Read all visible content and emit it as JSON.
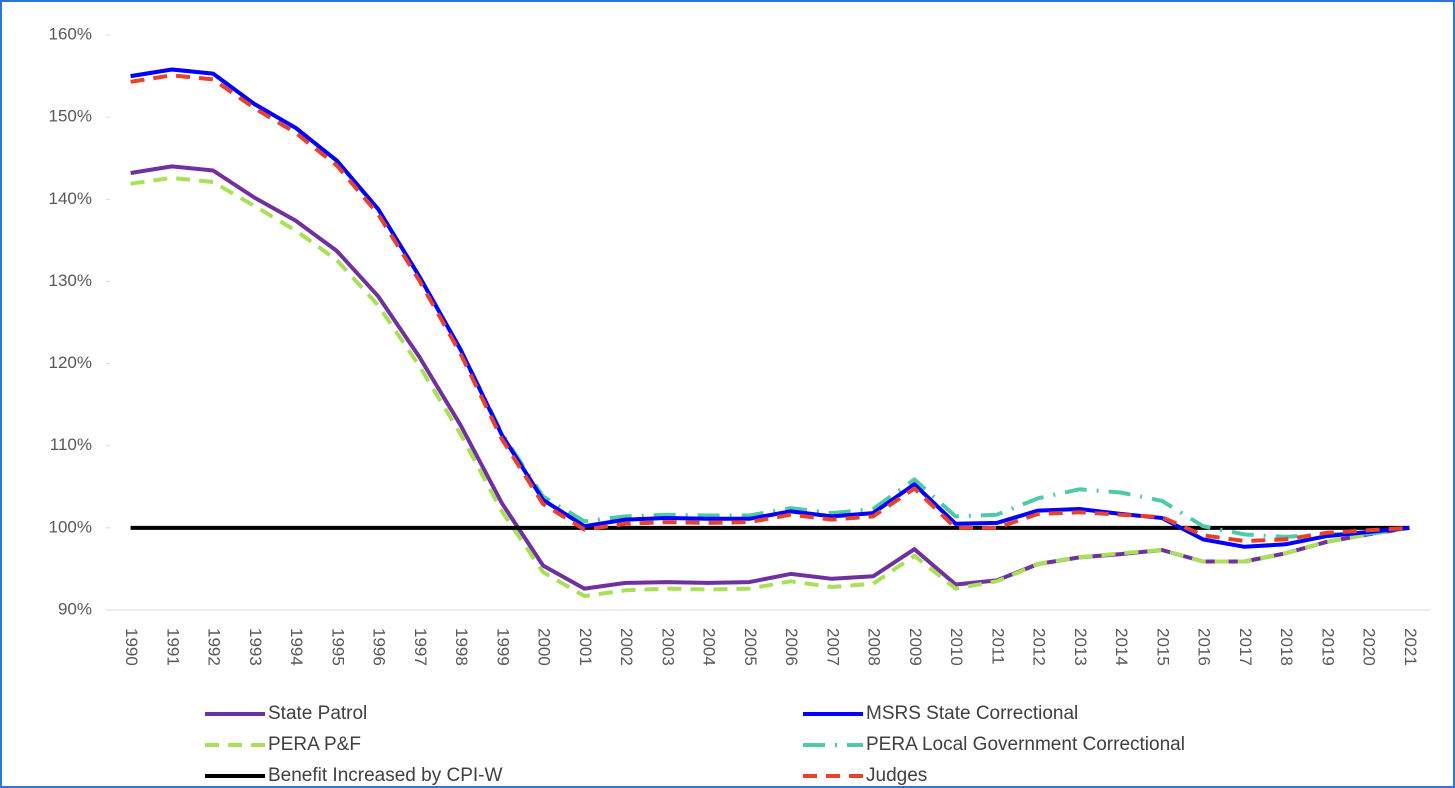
{
  "chart_data": {
    "type": "line",
    "categories": [
      "1990",
      "1991",
      "1992",
      "1993",
      "1994",
      "1995",
      "1996",
      "1997",
      "1998",
      "1999",
      "2000",
      "2001",
      "2002",
      "2003",
      "2004",
      "2005",
      "2006",
      "2007",
      "2008",
      "2009",
      "2010",
      "2011",
      "2012",
      "2013",
      "2014",
      "2015",
      "2016",
      "2017",
      "2018",
      "2019",
      "2020",
      "2021"
    ],
    "ylim": [
      90,
      160
    ],
    "yticks": [
      {
        "value": 90,
        "label": "90%"
      },
      {
        "value": 100,
        "label": "100%"
      },
      {
        "value": 110,
        "label": "110%"
      },
      {
        "value": 120,
        "label": "120%"
      },
      {
        "value": 130,
        "label": "130%"
      },
      {
        "value": 140,
        "label": "140%"
      },
      {
        "value": 150,
        "label": "150%"
      },
      {
        "value": 160,
        "label": "160%"
      }
    ],
    "grid": false,
    "series": [
      {
        "name": "State Patrol",
        "color": "#7030a0",
        "line_style": "solid",
        "values": [
          143.2,
          144,
          143.5,
          140.2,
          137.4,
          133.7,
          128.2,
          120.8,
          112.5,
          103,
          95.4,
          92.6,
          93.3,
          93.4,
          93.3,
          93.4,
          94.4,
          93.8,
          94.1,
          97.4,
          93.1,
          93.6,
          95.6,
          96.4,
          96.8,
          97.3,
          95.9,
          95.9,
          96.9,
          98.3,
          99.2,
          100
        ]
      },
      {
        "name": "MSRS State Correctional",
        "color": "#0000ff",
        "line_style": "solid",
        "values": [
          155,
          155.8,
          155.3,
          151.6,
          148.7,
          144.7,
          138.8,
          130.6,
          121.7,
          111.3,
          103.4,
          100.2,
          101,
          101.2,
          101.1,
          101.1,
          102,
          101.4,
          101.8,
          105.3,
          100.5,
          100.6,
          102.1,
          102.3,
          101.7,
          101.2,
          98.6,
          97.7,
          98,
          99,
          99.5,
          100
        ]
      },
      {
        "name": "PERA P&F",
        "color": "#a9e05a",
        "line_style": "dashed",
        "values": [
          141.9,
          142.6,
          142.1,
          139.2,
          136.2,
          132.6,
          127.1,
          119.7,
          111.4,
          102,
          94.6,
          91.7,
          92.4,
          92.6,
          92.5,
          92.6,
          93.5,
          92.8,
          93.2,
          96.6,
          92.6,
          93.5,
          95.6,
          96.4,
          96.9,
          97.3,
          95.9,
          95.9,
          96.9,
          98.3,
          99.2,
          100
        ]
      },
      {
        "name": "PERA Local Government Correctional",
        "color": "#4fc9a8",
        "line_style": "long-dash",
        "values": [
          155,
          155.8,
          155.3,
          151.6,
          148.7,
          144.7,
          138.8,
          130.6,
          121.7,
          111.5,
          103.8,
          100.8,
          101.4,
          101.6,
          101.5,
          101.5,
          102.4,
          101.8,
          102.3,
          105.9,
          101.4,
          101.6,
          103.6,
          104.7,
          104.3,
          103.3,
          100.2,
          99.2,
          98.9,
          99.2,
          99.3,
          100
        ]
      },
      {
        "name": "Benefit Increased by CPI-W",
        "color": "#000000",
        "line_style": "solid",
        "values": [
          100,
          100,
          100,
          100,
          100,
          100,
          100,
          100,
          100,
          100,
          100,
          100,
          100,
          100,
          100,
          100,
          100,
          100,
          100,
          100,
          100,
          100,
          100,
          100,
          100,
          100,
          100,
          100,
          100,
          100,
          100,
          100
        ]
      },
      {
        "name": "Judges",
        "color": "#e8412c",
        "line_style": "dashed",
        "values": [
          154.3,
          155.1,
          154.6,
          151.1,
          148.1,
          144.1,
          138.2,
          130.1,
          121.2,
          110.8,
          102.9,
          99.8,
          100.5,
          100.7,
          100.6,
          100.7,
          101.6,
          101,
          101.4,
          104.8,
          100,
          100,
          101.7,
          101.9,
          101.6,
          101.3,
          99.1,
          98.4,
          98.6,
          99.4,
          99.7,
          100
        ]
      }
    ]
  }
}
